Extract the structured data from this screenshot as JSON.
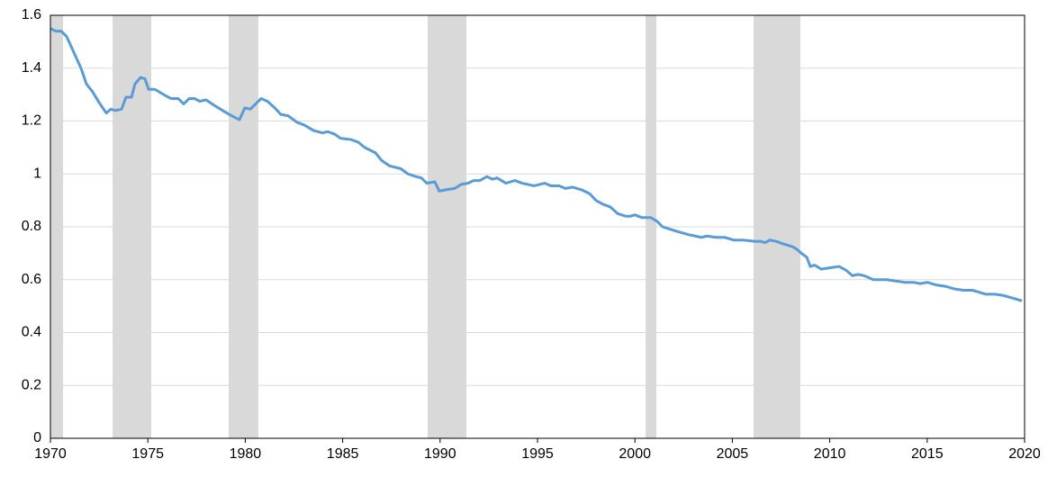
{
  "chart_data": {
    "type": "line",
    "color": "#5b9bd5",
    "shade_color": "#d9d9d9",
    "grid": true,
    "xlim": [
      1970,
      2020
    ],
    "xticks": [
      1970,
      1975,
      1980,
      1985,
      1990,
      1995,
      2000,
      2005,
      2010,
      2015,
      2020
    ],
    "ylim": [
      0,
      1.6
    ],
    "yticks": [
      0,
      0.2,
      0.4,
      0.6,
      0.8,
      1,
      1.2,
      1.4,
      1.6
    ],
    "shaded_ranges": [
      [
        1970.0,
        1970.65
      ],
      [
        1973.19,
        1975.18
      ],
      [
        1979.15,
        1980.67
      ],
      [
        1989.36,
        1991.35
      ],
      [
        2000.55,
        2001.1
      ],
      [
        2006.09,
        2008.49
      ]
    ],
    "x": [
      1970.0,
      1970.28,
      1970.55,
      1970.83,
      1971.2,
      1971.57,
      1971.85,
      1972.17,
      1972.5,
      1972.87,
      1973.1,
      1973.33,
      1973.65,
      1973.88,
      1974.16,
      1974.34,
      1974.62,
      1974.85,
      1975.04,
      1975.36,
      1975.82,
      1976.19,
      1976.56,
      1976.84,
      1977.12,
      1977.39,
      1977.67,
      1977.99,
      1978.5,
      1979.06,
      1979.43,
      1979.7,
      1979.98,
      1980.26,
      1980.81,
      1981.14,
      1981.51,
      1981.83,
      1982.2,
      1982.66,
      1983.03,
      1983.49,
      1983.96,
      1984.23,
      1984.6,
      1984.88,
      1985.43,
      1985.8,
      1986.13,
      1986.68,
      1987.01,
      1987.42,
      1987.98,
      1988.35,
      1988.76,
      1989.04,
      1989.32,
      1989.73,
      1989.96,
      1990.29,
      1990.75,
      1991.07,
      1991.44,
      1991.72,
      1992.04,
      1992.41,
      1992.69,
      1992.92,
      1993.38,
      1993.84,
      1994.21,
      1994.82,
      1995.37,
      1995.69,
      1996.11,
      1996.43,
      1996.8,
      1997.26,
      1997.68,
      1998.0,
      1998.37,
      1998.74,
      1999.11,
      1999.53,
      1999.76,
      1999.99,
      2000.36,
      2000.82,
      2001.15,
      2001.42,
      2001.84,
      2002.3,
      2002.76,
      2003.09,
      2003.41,
      2003.69,
      2004.15,
      2004.61,
      2005.07,
      2005.54,
      2006.14,
      2006.46,
      2006.69,
      2006.92,
      2007.25,
      2007.62,
      2008.08,
      2008.31,
      2008.54,
      2008.82,
      2009.0,
      2009.23,
      2009.56,
      2010.02,
      2010.48,
      2010.85,
      2011.17,
      2011.45,
      2011.77,
      2012.24,
      2012.93,
      2013.39,
      2013.85,
      2014.32,
      2014.64,
      2015.01,
      2015.47,
      2015.93,
      2016.4,
      2016.86,
      2017.32,
      2017.55,
      2018.01,
      2018.48,
      2018.94,
      2019.4,
      2019.86
    ],
    "values": [
      1.55,
      1.54,
      1.54,
      1.52,
      1.46,
      1.4,
      1.34,
      1.31,
      1.27,
      1.23,
      1.245,
      1.24,
      1.245,
      1.29,
      1.29,
      1.34,
      1.365,
      1.36,
      1.32,
      1.32,
      1.3,
      1.285,
      1.285,
      1.265,
      1.285,
      1.285,
      1.275,
      1.28,
      1.255,
      1.23,
      1.215,
      1.205,
      1.25,
      1.245,
      1.285,
      1.275,
      1.25,
      1.225,
      1.22,
      1.195,
      1.185,
      1.165,
      1.155,
      1.16,
      1.15,
      1.135,
      1.13,
      1.12,
      1.1,
      1.08,
      1.05,
      1.03,
      1.02,
      1.0,
      0.99,
      0.985,
      0.965,
      0.97,
      0.935,
      0.94,
      0.945,
      0.96,
      0.965,
      0.975,
      0.975,
      0.99,
      0.98,
      0.985,
      0.965,
      0.975,
      0.965,
      0.955,
      0.965,
      0.955,
      0.955,
      0.945,
      0.95,
      0.94,
      0.925,
      0.9,
      0.885,
      0.875,
      0.85,
      0.84,
      0.84,
      0.845,
      0.835,
      0.835,
      0.82,
      0.8,
      0.79,
      0.78,
      0.77,
      0.765,
      0.76,
      0.765,
      0.76,
      0.76,
      0.75,
      0.75,
      0.745,
      0.745,
      0.74,
      0.75,
      0.745,
      0.735,
      0.725,
      0.715,
      0.7,
      0.685,
      0.65,
      0.655,
      0.64,
      0.645,
      0.65,
      0.635,
      0.615,
      0.62,
      0.615,
      0.6,
      0.6,
      0.595,
      0.59,
      0.59,
      0.585,
      0.59,
      0.58,
      0.575,
      0.565,
      0.56,
      0.56,
      0.555,
      0.545,
      0.545,
      0.54,
      0.53,
      0.52
    ]
  }
}
